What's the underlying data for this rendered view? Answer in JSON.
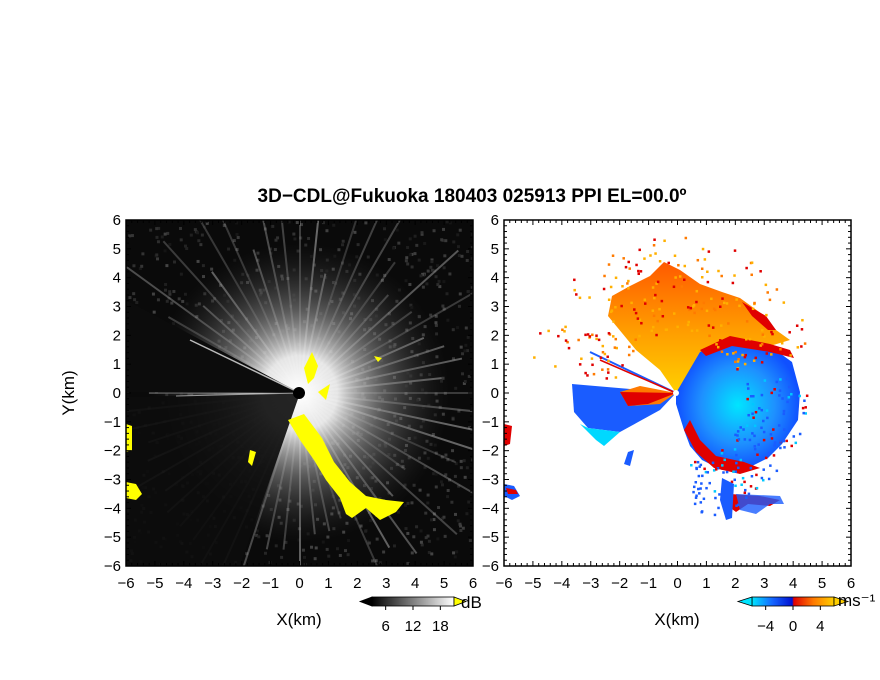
{
  "title": "3D−CDL@Fukuoka 180403 025913 PPI EL=00.0º",
  "chart_data": [
    {
      "type": "heatmap",
      "panel": "left",
      "quantity": "SNR (dB)",
      "xlabel": "X(km)",
      "ylabel": "Y(km)",
      "xlim": [
        -6,
        6
      ],
      "ylim": [
        -6,
        6
      ],
      "xticks": [
        "−6",
        "−5",
        "−4",
        "−3",
        "−2",
        "−1",
        "0",
        "1",
        "2",
        "3",
        "4",
        "5",
        "6"
      ],
      "yticks": [
        "−6",
        "−5",
        "−4",
        "−3",
        "−2",
        "−1",
        "0",
        "1",
        "2",
        "3",
        "4",
        "5",
        "6"
      ],
      "colorbar": {
        "unit": "dB",
        "ticks": [
          "6",
          "12",
          "18"
        ],
        "range": [
          3,
          21
        ],
        "colors": "grayscale",
        "over_color": "#ffff00"
      }
    },
    {
      "type": "heatmap",
      "panel": "right",
      "quantity": "Doppler velocity (m/s)",
      "xlabel": "X(km)",
      "xlim": [
        -6,
        6
      ],
      "ylim": [
        -6,
        6
      ],
      "xticks": [
        "−6",
        "−5",
        "−4",
        "−3",
        "−2",
        "−1",
        "0",
        "1",
        "2",
        "3",
        "4",
        "5",
        "6"
      ],
      "yticks": [
        "−6",
        "−5",
        "−4",
        "−3",
        "−2",
        "−1",
        "0",
        "1",
        "2",
        "3",
        "4",
        "5",
        "6"
      ],
      "colorbar": {
        "unit": "ms⁻¹",
        "ticks": [
          "−4",
          "0",
          "4"
        ],
        "range": [
          -6,
          6
        ],
        "colors": [
          "#00e5ff",
          "#1565ff",
          "#0010d0",
          "#e00000",
          "#ff7a00",
          "#ffd000"
        ]
      }
    }
  ]
}
